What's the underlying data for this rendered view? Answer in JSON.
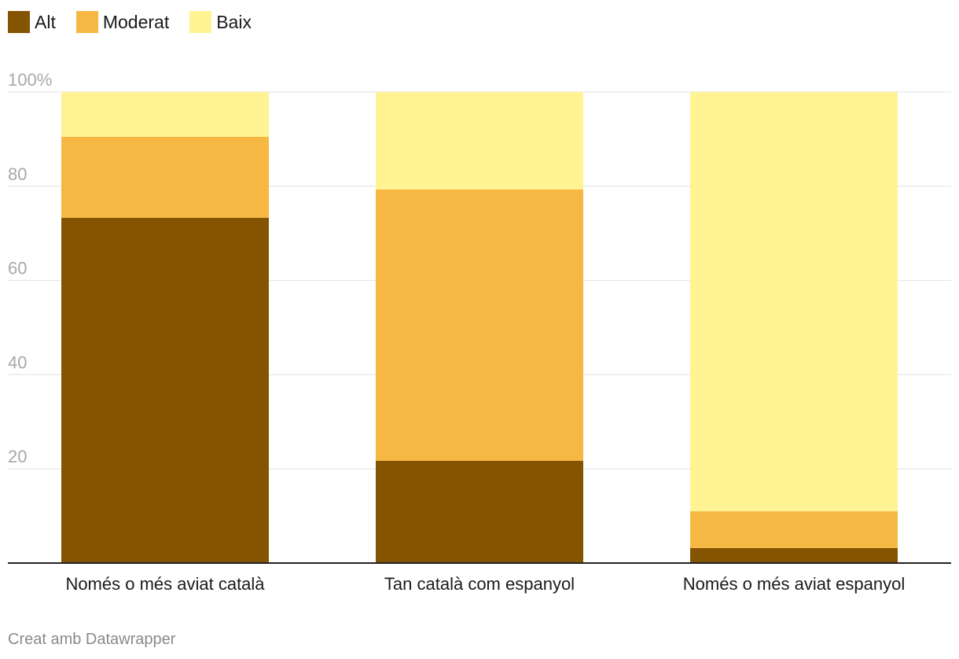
{
  "chart_data": {
    "type": "bar",
    "stacked": true,
    "categories": [
      "Només o més aviat català",
      "Tan català com espanyol",
      "Només o més aviat espanyol"
    ],
    "series": [
      {
        "name": "Alt",
        "color": "#845400",
        "values": [
          73.3,
          21.7,
          3.2
        ]
      },
      {
        "name": "Moderat",
        "color": "#f6b842",
        "values": [
          17.2,
          57.6,
          7.8
        ]
      },
      {
        "name": "Baix",
        "color": "#fff394",
        "values": [
          9.5,
          20.7,
          89.0
        ]
      }
    ],
    "ylim": [
      0,
      100
    ],
    "yticks": [
      20,
      40,
      60,
      80,
      100
    ],
    "ytick_labels": [
      "20",
      "40",
      "60",
      "80",
      "100%"
    ],
    "grid": true,
    "legend": "top-left"
  },
  "footer": {
    "credit": "Creat amb Datawrapper"
  }
}
